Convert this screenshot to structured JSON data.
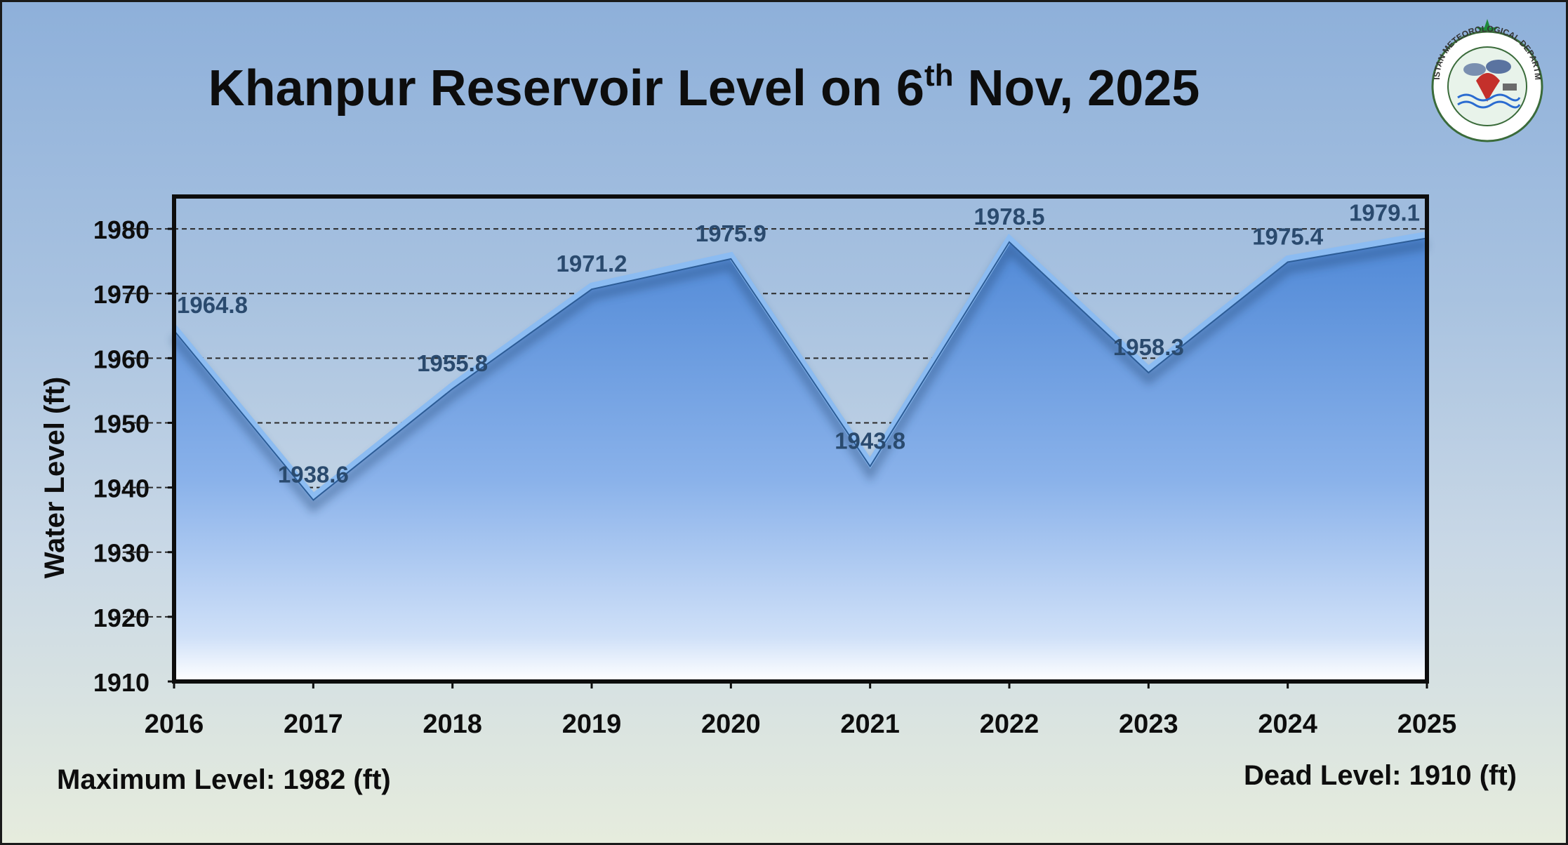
{
  "title": {
    "prefix": "Khanpur Reservoir Level on 6",
    "superscript": "th",
    "suffix": " Nov, 2025"
  },
  "notes": {
    "maximum": "Maximum Level: 1982 (ft)",
    "dead": "Dead Level: 1910 (ft)"
  },
  "logo": {
    "text": "PAKISTAN METEOROLOGICAL DEPARTMENT",
    "icon": "pmd-seal-icon"
  },
  "colors": {
    "area_top": "#5b93dc",
    "area_bottom": "#ffffff",
    "line": "#8cbcf2",
    "label": "#2a4a6e"
  },
  "chart_data": {
    "type": "area",
    "x": [
      "2016",
      "2017",
      "2018",
      "2019",
      "2020",
      "2021",
      "2022",
      "2023",
      "2024",
      "2025"
    ],
    "series": [
      {
        "values": [
          1964.8,
          1938.6,
          1955.8,
          1971.2,
          1975.9,
          1943.8,
          1978.5,
          1958.3,
          1975.4,
          1979.1
        ],
        "labels": [
          "1964.8",
          "1938.6",
          "1955.8",
          "1971.2",
          "1975.9",
          "1943.8",
          "1978.5",
          "1958.3",
          "1975.4",
          "1979.1"
        ]
      }
    ],
    "xlabel": "",
    "ylabel": "Water Level (ft)",
    "ylim": [
      1910,
      1985
    ],
    "yticks": [
      1910,
      1920,
      1930,
      1940,
      1950,
      1960,
      1970,
      1980
    ],
    "ytick_labels": [
      "1910",
      "1920",
      "1930",
      "1940",
      "1950",
      "1960",
      "1970",
      "1980"
    ],
    "grid": "horizontal-dashed",
    "legend": "none"
  }
}
